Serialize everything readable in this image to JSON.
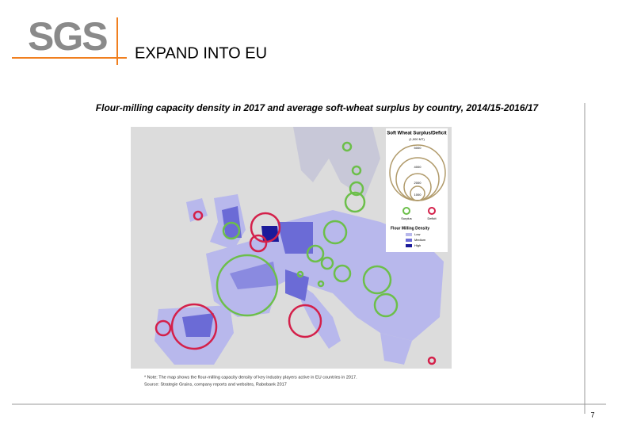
{
  "header": {
    "logo": "SGS",
    "title": "EXPAND INTO EU"
  },
  "subtitle": "Flour-milling capacity density in 2017 and average soft-wheat surplus by country, 2014/15-2016/17",
  "map": {
    "legend": {
      "title": "Soft Wheat Surplus/Deficit",
      "unit": "(1,000 MT)",
      "sizes": [
        "5000",
        "4000",
        "2000",
        "1000"
      ],
      "surplus": "Surplus",
      "deficit": "Deficit",
      "density_title": "Flour Milling Density",
      "low": "Low",
      "medium": "Medium",
      "high": "High"
    },
    "note": "* Note: The map shows the flour-milling capacity density of key industry players active in EU countries in 2017.",
    "source": "Source: Strategie Grains, company reports and websites, Rabobank 2017"
  },
  "footer": {
    "page": "7"
  }
}
